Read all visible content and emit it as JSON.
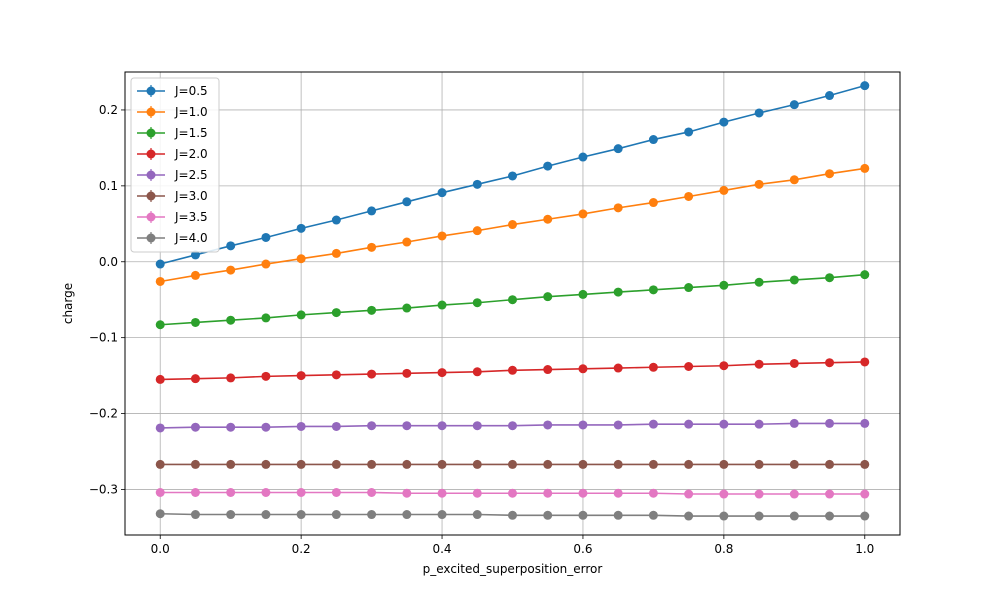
{
  "chart_data": {
    "type": "line",
    "title": "",
    "xlabel": "p_excited_superposition_error",
    "ylabel": "charge",
    "xlim": [
      -0.05,
      1.05
    ],
    "ylim": [
      -0.36,
      0.25
    ],
    "xticks": [
      0.0,
      0.2,
      0.4,
      0.6,
      0.8,
      1.0
    ],
    "xtick_labels": [
      "0.0",
      "0.2",
      "0.4",
      "0.6",
      "0.8",
      "1.0"
    ],
    "yticks": [
      -0.3,
      -0.2,
      -0.1,
      0.0,
      0.1,
      0.2
    ],
    "ytick_labels": [
      "−0.3",
      "−0.2",
      "−0.1",
      "0.0",
      "0.1",
      "0.2"
    ],
    "grid": true,
    "legend_position": "top-left",
    "x": [
      0.0,
      0.05,
      0.1,
      0.15,
      0.2,
      0.25,
      0.3,
      0.35,
      0.4,
      0.45,
      0.5,
      0.55,
      0.6,
      0.65,
      0.7,
      0.75,
      0.8,
      0.85,
      0.9,
      0.95,
      1.0
    ],
    "series": [
      {
        "name": "J=0.5",
        "color": "#1f77b4",
        "values": [
          -0.003,
          0.009,
          0.021,
          0.032,
          0.044,
          0.055,
          0.067,
          0.079,
          0.091,
          0.102,
          0.113,
          0.126,
          0.138,
          0.149,
          0.161,
          0.171,
          0.184,
          0.196,
          0.207,
          0.219,
          0.232
        ]
      },
      {
        "name": "J=1.0",
        "color": "#ff7f0e",
        "values": [
          -0.026,
          -0.018,
          -0.011,
          -0.003,
          0.004,
          0.011,
          0.019,
          0.026,
          0.034,
          0.041,
          0.049,
          0.056,
          0.063,
          0.071,
          0.078,
          0.086,
          0.094,
          0.102,
          0.108,
          0.116,
          0.123
        ]
      },
      {
        "name": "J=1.5",
        "color": "#2ca02c",
        "values": [
          -0.083,
          -0.08,
          -0.077,
          -0.074,
          -0.07,
          -0.067,
          -0.064,
          -0.061,
          -0.057,
          -0.054,
          -0.05,
          -0.046,
          -0.043,
          -0.04,
          -0.037,
          -0.034,
          -0.031,
          -0.027,
          -0.024,
          -0.021,
          -0.017
        ]
      },
      {
        "name": "J=2.0",
        "color": "#d62728",
        "values": [
          -0.155,
          -0.154,
          -0.153,
          -0.151,
          -0.15,
          -0.149,
          -0.148,
          -0.147,
          -0.146,
          -0.145,
          -0.143,
          -0.142,
          -0.141,
          -0.14,
          -0.139,
          -0.138,
          -0.137,
          -0.135,
          -0.134,
          -0.133,
          -0.132
        ]
      },
      {
        "name": "J=2.5",
        "color": "#9467bd",
        "values": [
          -0.219,
          -0.218,
          -0.218,
          -0.218,
          -0.217,
          -0.217,
          -0.216,
          -0.216,
          -0.216,
          -0.216,
          -0.216,
          -0.215,
          -0.215,
          -0.215,
          -0.214,
          -0.214,
          -0.214,
          -0.214,
          -0.213,
          -0.213,
          -0.213
        ]
      },
      {
        "name": "J=3.0",
        "color": "#8c564b",
        "values": [
          -0.267,
          -0.267,
          -0.267,
          -0.267,
          -0.267,
          -0.267,
          -0.267,
          -0.267,
          -0.267,
          -0.267,
          -0.267,
          -0.267,
          -0.267,
          -0.267,
          -0.267,
          -0.267,
          -0.267,
          -0.267,
          -0.267,
          -0.267,
          -0.267
        ]
      },
      {
        "name": "J=3.5",
        "color": "#e377c2",
        "values": [
          -0.304,
          -0.304,
          -0.304,
          -0.304,
          -0.304,
          -0.304,
          -0.304,
          -0.305,
          -0.305,
          -0.305,
          -0.305,
          -0.305,
          -0.305,
          -0.305,
          -0.305,
          -0.306,
          -0.306,
          -0.306,
          -0.306,
          -0.306,
          -0.306
        ]
      },
      {
        "name": "J=4.0",
        "color": "#7f7f7f",
        "values": [
          -0.332,
          -0.333,
          -0.333,
          -0.333,
          -0.333,
          -0.333,
          -0.333,
          -0.333,
          -0.333,
          -0.333,
          -0.334,
          -0.334,
          -0.334,
          -0.334,
          -0.334,
          -0.335,
          -0.335,
          -0.335,
          -0.335,
          -0.335,
          -0.335
        ]
      }
    ]
  }
}
